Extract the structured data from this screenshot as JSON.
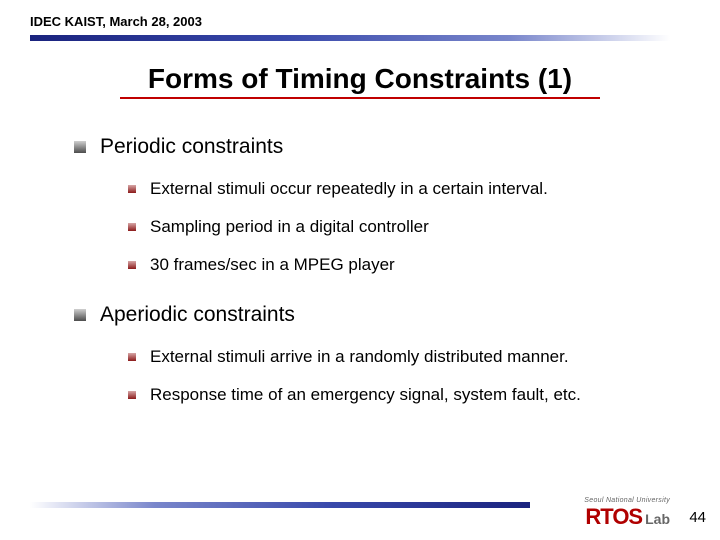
{
  "header": {
    "text": "IDEC KAIST, March 28, 2003",
    "rule_gradient_from": "#1a237e",
    "rule_gradient_to": "#ffffff"
  },
  "title": {
    "text": "Forms of Timing Constraints (1)",
    "underline_color": "#c00000"
  },
  "sections": [
    {
      "title": "Periodic constraints",
      "items": [
        "External stimuli occur repeatedly in a certain interval.",
        "Sampling period in a digital controller",
        "30 frames/sec in a MPEG player"
      ]
    },
    {
      "title": "Aperiodic constraints",
      "items": [
        "External stimuli arrive in a randomly distributed manner.",
        "Response time of an emergency signal, system fault, etc."
      ]
    }
  ],
  "footer": {
    "univ_label": "Seoul National University",
    "logo_main": "RTOS",
    "logo_sub": "Lab",
    "page_number": "44"
  },
  "colors": {
    "big_bullet": "#6b6b6b",
    "small_bullet": "#8b1a1a",
    "logo_main_color": "#b00000",
    "logo_sub_color": "#666666"
  }
}
